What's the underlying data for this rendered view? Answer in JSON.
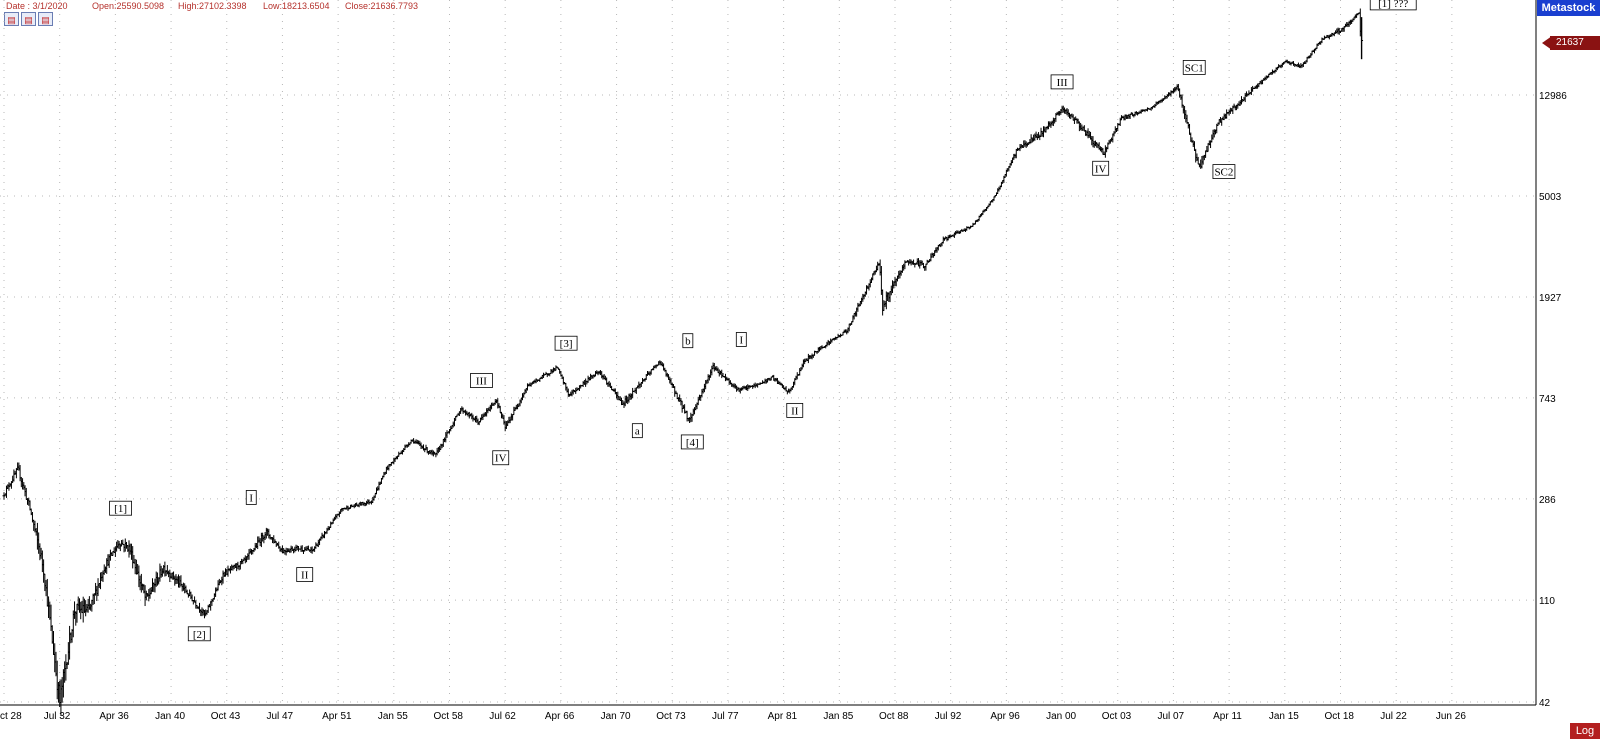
{
  "infobar": {
    "date": "Date : 3/1/2020",
    "open": "Open:25590.5098",
    "high": "High:27102.3398",
    "low": "Low:18213.6504",
    "close": "Close:21636.7793"
  },
  "toolbar": {
    "icons": [
      "chart-tool-icon",
      "chart-tool-icon",
      "chart-tool-icon"
    ]
  },
  "brand": "Metastock",
  "price_tag": "21637",
  "scale_button": "Log",
  "colors": {
    "bars": "#000000",
    "grid": "#b8b8b8",
    "brand": "#1a3fd0",
    "price_tag": "#8a1212",
    "header_text": "#b5312c"
  },
  "chart_data": {
    "type": "bar",
    "scale": "log",
    "interval": "monthly OHLC",
    "x_ticks": [
      "ct 28",
      "Jul 32",
      "Apr 36",
      "Jan 40",
      "Oct 43",
      "Jul 47",
      "Apr 51",
      "Jan 55",
      "Oct 58",
      "Jul 62",
      "Apr 66",
      "Jan 70",
      "Oct 73",
      "Jul 77",
      "Apr 81",
      "Jan 85",
      "Oct 88",
      "Jul 92",
      "Apr 96",
      "Jan 00",
      "Oct 03",
      "Jul 07",
      "Apr 11",
      "Jan 15",
      "Oct 18",
      "Jul 22",
      "Jun 26"
    ],
    "y_ticks": [
      42,
      110,
      286,
      743,
      1927,
      5003,
      12986
    ],
    "ylim": [
      42,
      34000
    ],
    "series": [
      {
        "x": [
          1928.75,
          1929.7,
          1930.5,
          1931.4,
          1932.5,
          1933.5,
          1934.5,
          1935.5,
          1936.5,
          1937.2,
          1938.3,
          1939.5,
          1940.5,
          1941.5,
          1942.3,
          1943.5,
          1945.0,
          1946.4,
          1947.5,
          1948.5,
          1949.5,
          1951.5,
          1953.5,
          1954.5,
          1956.2,
          1957.8,
          1959.5,
          1960.7,
          1961.9,
          1962.5,
          1964.0,
          1966.0,
          1966.8,
          1968.8,
          1970.4,
          1972.9,
          1974.9,
          1976.5,
          1978.2,
          1979.5,
          1980.5,
          1981.6,
          1982.6,
          1983.8,
          1985.5,
          1987.7,
          1987.9,
          1989.5,
          1990.8,
          1992.0,
          1994.0,
          1995.5,
          1997.0,
          1998.6,
          2000.0,
          2001.0,
          2002.0,
          2002.8,
          2004.0,
          2006.0,
          2007.8,
          2008.5,
          2009.2,
          2010.5,
          2011.8,
          2013.0,
          2015.0,
          2016.1,
          2017.5,
          2018.8,
          2019.5,
          2020.0,
          2020.17
        ],
        "close": [
          300,
          380,
          260,
          150,
          42,
          100,
          100,
          150,
          190,
          180,
          110,
          150,
          130,
          110,
          95,
          140,
          160,
          210,
          175,
          180,
          175,
          260,
          280,
          380,
          500,
          430,
          670,
          590,
          730,
          560,
          830,
          990,
          760,
          960,
          700,
          1050,
          600,
          1000,
          800,
          840,
          900,
          780,
          1040,
          1200,
          1400,
          2700,
          1750,
          2700,
          2600,
          3300,
          3800,
          5000,
          7800,
          9000,
          11400,
          10100,
          8500,
          7500,
          10400,
          11500,
          14000,
          9500,
          6500,
          10000,
          11800,
          14000,
          17800,
          17000,
          22000,
          24000,
          26000,
          28500,
          21637
        ],
        "volatility": [
          0.05,
          0.06,
          0.09,
          0.14,
          0.18,
          0.15,
          0.12,
          0.08,
          0.07,
          0.09,
          0.12,
          0.08,
          0.07,
          0.06,
          0.05,
          0.05,
          0.05,
          0.06,
          0.05,
          0.04,
          0.04,
          0.03,
          0.03,
          0.03,
          0.03,
          0.04,
          0.03,
          0.04,
          0.03,
          0.05,
          0.03,
          0.03,
          0.04,
          0.03,
          0.05,
          0.03,
          0.06,
          0.04,
          0.03,
          0.03,
          0.03,
          0.03,
          0.04,
          0.03,
          0.03,
          0.05,
          0.09,
          0.04,
          0.05,
          0.03,
          0.02,
          0.02,
          0.04,
          0.06,
          0.04,
          0.05,
          0.06,
          0.05,
          0.03,
          0.02,
          0.03,
          0.07,
          0.08,
          0.04,
          0.05,
          0.03,
          0.02,
          0.03,
          0.02,
          0.04,
          0.03,
          0.03,
          0.2
        ]
      }
    ],
    "annotations": [
      {
        "text": "[1]",
        "x": 1936.6,
        "y": 262
      },
      {
        "text": "[2]",
        "x": 1941.9,
        "y": 80
      },
      {
        "text": "I",
        "x": 1945.4,
        "y": 290
      },
      {
        "text": "II",
        "x": 1949.0,
        "y": 140
      },
      {
        "text": "III",
        "x": 1960.9,
        "y": 875
      },
      {
        "text": "IV",
        "x": 1962.2,
        "y": 422
      },
      {
        "text": "[3]",
        "x": 1966.6,
        "y": 1245
      },
      {
        "text": "a",
        "x": 1971.4,
        "y": 545
      },
      {
        "text": "b",
        "x": 1974.8,
        "y": 1275
      },
      {
        "text": "[4]",
        "x": 1975.1,
        "y": 490
      },
      {
        "text": "I",
        "x": 1978.4,
        "y": 1290
      },
      {
        "text": "II",
        "x": 1982.0,
        "y": 660
      },
      {
        "text": "III",
        "x": 2000.0,
        "y": 14700
      },
      {
        "text": "IV",
        "x": 2002.6,
        "y": 6500
      },
      {
        "text": "SC1",
        "x": 2008.9,
        "y": 16850
      },
      {
        "text": "SC2",
        "x": 2010.9,
        "y": 6300
      },
      {
        "text": "[1] ???",
        "x": 2022.3,
        "y": 31000
      }
    ],
    "grid": true,
    "price_axis": "right"
  }
}
